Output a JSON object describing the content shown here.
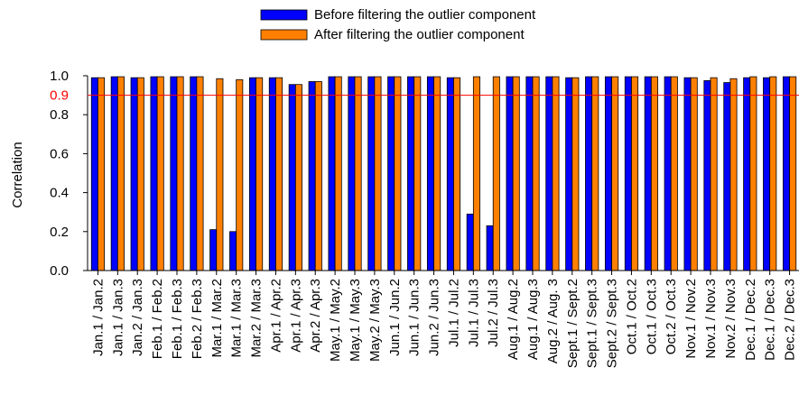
{
  "chart_data": {
    "type": "bar",
    "ylabel": "Correlation",
    "xlabel": "",
    "ylim": [
      0.0,
      1.0
    ],
    "yticks": [
      "0.0",
      "0.2",
      "0.4",
      "0.6",
      "0.8",
      "1.0"
    ],
    "grid": false,
    "legend_position": "top-center",
    "reference_line": {
      "value": 0.9,
      "label": "0.9",
      "color": "#ff0000"
    },
    "categories": [
      "Jan.1 / Jan.2",
      "Jan.1 / Jan.3",
      "Jan.2 / Jan.3",
      "Feb.1 / Feb.2",
      "Feb.1 / Feb.3",
      "Feb.2 / Feb.3",
      "Mar.1 / Mar.2",
      "Mar.1 / Mar.3",
      "Mar.2 / Mar.3",
      "Apr.1 / Apr.2",
      "Apr.1 / Apr.3",
      "Apr.2 / Apr.3",
      "May.1 / May.2",
      "May.1 / May.3",
      "May.2 / May.3",
      "Jun.1 / Jun.2",
      "Jun.1 / Jun.3",
      "Jun.2 / Jun.3",
      "Jul.1 / Jul.2",
      "Jul.1 / Jul.3",
      "Jul.2 / Jul.3",
      "Aug.1 / Aug.2",
      "Aug.1 / Aug.3",
      "Aug.2 / Aug. 3",
      "Sept.1 / Sept.2",
      "Sept.1 / Sept.3",
      "Sept.2 / Sept.3",
      "Oct.1 / Oct.2",
      "Oct.1 / Oct.3",
      "Oct.2 / Oct.3",
      "Nov.1 / Nov.2",
      "Nov.1 / Nov.3",
      "Nov.2 / Nov.3",
      "Dec.1 / Dec.2",
      "Dec.1 / Dec.3",
      "Dec.2 / Dec.3"
    ],
    "series": [
      {
        "name": "Before filtering the outlier component",
        "color": "#0000ff",
        "values": [
          0.99,
          0.995,
          0.99,
          0.995,
          0.995,
          0.995,
          0.21,
          0.2,
          0.99,
          0.99,
          0.955,
          0.97,
          0.995,
          0.995,
          0.995,
          0.995,
          0.995,
          0.995,
          0.99,
          0.29,
          0.23,
          0.995,
          0.995,
          0.995,
          0.99,
          0.995,
          0.995,
          0.995,
          0.995,
          0.995,
          0.99,
          0.975,
          0.965,
          0.99,
          0.99,
          0.995
        ]
      },
      {
        "name": "After filtering the outlier component",
        "color": "#ff8000",
        "values": [
          0.99,
          0.995,
          0.99,
          0.995,
          0.995,
          0.995,
          0.985,
          0.98,
          0.99,
          0.99,
          0.955,
          0.97,
          0.995,
          0.995,
          0.995,
          0.995,
          0.995,
          0.995,
          0.99,
          0.995,
          0.995,
          0.995,
          0.995,
          0.995,
          0.99,
          0.995,
          0.995,
          0.995,
          0.995,
          0.995,
          0.99,
          0.99,
          0.985,
          0.995,
          0.995,
          0.995
        ]
      }
    ]
  }
}
